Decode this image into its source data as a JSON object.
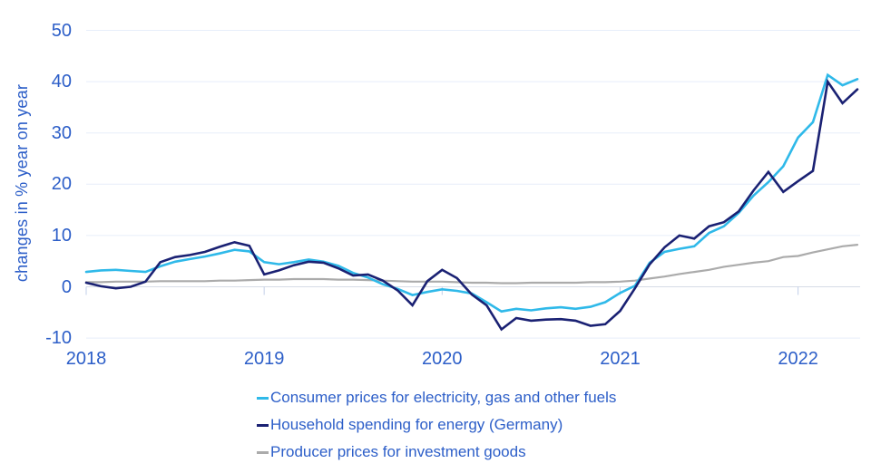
{
  "chart_data": {
    "type": "line",
    "title": "",
    "ylabel": "changes in % year on year",
    "ylim": [
      -10,
      50
    ],
    "yticks": [
      50,
      40,
      30,
      20,
      10,
      0,
      -10
    ],
    "xticks": [
      "2018",
      "2019",
      "2020",
      "2021",
      "2022"
    ],
    "grid": "horizontal",
    "legend_position": "bottom",
    "x_months": [
      "2018-01",
      "2018-02",
      "2018-03",
      "2018-04",
      "2018-05",
      "2018-06",
      "2018-07",
      "2018-08",
      "2018-09",
      "2018-10",
      "2018-11",
      "2018-12",
      "2019-01",
      "2019-02",
      "2019-03",
      "2019-04",
      "2019-05",
      "2019-06",
      "2019-07",
      "2019-08",
      "2019-09",
      "2019-10",
      "2019-11",
      "2019-12",
      "2020-01",
      "2020-02",
      "2020-03",
      "2020-04",
      "2020-05",
      "2020-06",
      "2020-07",
      "2020-08",
      "2020-09",
      "2020-10",
      "2020-11",
      "2020-12",
      "2021-01",
      "2021-02",
      "2021-03",
      "2021-04",
      "2021-05",
      "2021-06",
      "2021-07",
      "2021-08",
      "2021-09",
      "2021-10",
      "2021-11",
      "2021-12",
      "2022-01",
      "2022-02",
      "2022-03",
      "2022-04",
      "2022-05"
    ],
    "series": [
      {
        "name": "Consumer prices for electricity, gas and other fuels",
        "color": "#2FB9E9",
        "values": [
          2.9,
          3.2,
          3.3,
          3.1,
          2.9,
          4.0,
          4.9,
          5.4,
          5.9,
          6.5,
          7.2,
          6.9,
          4.8,
          4.4,
          4.8,
          5.3,
          4.9,
          4.1,
          2.7,
          1.8,
          0.5,
          -0.4,
          -1.6,
          -1.0,
          -0.5,
          -0.8,
          -1.3,
          -3.0,
          -4.8,
          -4.3,
          -4.6,
          -4.2,
          -4.0,
          -4.3,
          -3.9,
          -3.0,
          -1.2,
          0.2,
          4.7,
          6.8,
          7.4,
          7.9,
          10.5,
          11.8,
          14.4,
          17.8,
          20.4,
          23.5,
          29.1,
          32.1,
          41.3,
          39.3,
          40.5
        ]
      },
      {
        "name": "Household spending for energy (Germany)",
        "color": "#1A2173",
        "values": [
          0.8,
          0.1,
          -0.3,
          0.0,
          1.0,
          4.8,
          5.8,
          6.2,
          6.8,
          7.8,
          8.7,
          8.0,
          2.4,
          3.2,
          4.2,
          4.9,
          4.7,
          3.6,
          2.2,
          2.4,
          1.2,
          -0.7,
          -3.6,
          1.1,
          3.3,
          1.7,
          -1.5,
          -3.6,
          -8.3,
          -6.1,
          -6.6,
          -6.4,
          -6.3,
          -6.6,
          -7.6,
          -7.3,
          -4.7,
          -0.3,
          4.4,
          7.7,
          10.0,
          9.4,
          11.8,
          12.6,
          14.7,
          18.8,
          22.4,
          18.5,
          20.6,
          22.6,
          40.0,
          35.8,
          38.5
        ]
      },
      {
        "name": "Producer prices for investment goods",
        "color": "#ABABAB",
        "values": [
          0.9,
          0.9,
          1.0,
          1.0,
          1.0,
          1.1,
          1.1,
          1.1,
          1.1,
          1.2,
          1.2,
          1.3,
          1.4,
          1.4,
          1.5,
          1.5,
          1.5,
          1.4,
          1.4,
          1.3,
          1.2,
          1.1,
          1.0,
          1.0,
          1.0,
          0.9,
          0.8,
          0.8,
          0.7,
          0.7,
          0.8,
          0.8,
          0.8,
          0.8,
          0.9,
          0.9,
          1.0,
          1.2,
          1.6,
          2.0,
          2.5,
          2.9,
          3.3,
          3.9,
          4.3,
          4.7,
          5.0,
          5.8,
          6.0,
          6.7,
          7.3,
          7.9,
          8.2
        ]
      }
    ],
    "colors": {
      "axis_text": "#2C5EC8",
      "gridline": "#E7EEFA",
      "zero_line": "#D6DCE6",
      "year_tick": "#C2CFE9",
      "background": "#FFFFFF"
    }
  }
}
